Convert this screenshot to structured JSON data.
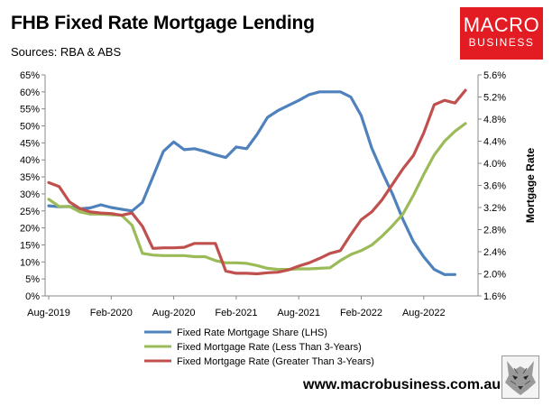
{
  "header": {
    "title": "FHB Fixed Rate Mortgage Lending",
    "subtitle": "Sources: RBA & ABS"
  },
  "logo": {
    "line1": "MACRO",
    "line2": "BUSINESS"
  },
  "footer": {
    "url": "www.macrobusiness.com.au"
  },
  "colors": {
    "share": "#4f81bd",
    "short": "#9bbb59",
    "long": "#c0504d",
    "brand": "#e31b23"
  },
  "chart_data": {
    "type": "line",
    "title": "FHB Fixed Rate Mortgage Lending",
    "ylabel_right": "Mortgage Rate",
    "x_tick_labels": [
      "Aug-2019",
      "Feb-2020",
      "Aug-2020",
      "Feb-2021",
      "Aug-2021",
      "Feb-2022",
      "Aug-2022"
    ],
    "x_tick_positions": [
      0,
      6,
      12,
      18,
      24,
      30,
      36
    ],
    "y_left": {
      "min": 0,
      "max": 65,
      "step": 5,
      "unit": "%"
    },
    "y_right": {
      "min": 1.6,
      "max": 5.6,
      "step": 0.4,
      "unit": "%"
    },
    "grid": false,
    "legend_position": "bottom",
    "series": [
      {
        "name": "Fixed Rate Mortgage Share (LHS)",
        "axis": "left",
        "color": "#4f81bd",
        "values": [
          26.5,
          26.2,
          26.3,
          25.6,
          25.9,
          26.8,
          26.0,
          25.5,
          25.0,
          27.5,
          35.0,
          42.5,
          45.3,
          43.0,
          43.3,
          42.5,
          41.5,
          40.7,
          43.8,
          43.3,
          47.5,
          52.5,
          54.5,
          56.0,
          57.5,
          59.2,
          60.0,
          60.0,
          60.0,
          58.5,
          53.0,
          43.5,
          36.5,
          30.0,
          22.5,
          16.0,
          11.5,
          7.8,
          6.3,
          6.3
        ]
      },
      {
        "name": "Fixed Mortgage Rate (Less Than 3-Years)",
        "axis": "right",
        "color": "#9bbb59",
        "values": [
          3.35,
          3.22,
          3.22,
          3.12,
          3.08,
          3.08,
          3.07,
          3.06,
          2.88,
          2.37,
          2.34,
          2.33,
          2.33,
          2.33,
          2.31,
          2.31,
          2.24,
          2.2,
          2.2,
          2.19,
          2.15,
          2.1,
          2.08,
          2.08,
          2.09,
          2.09,
          2.1,
          2.11,
          2.24,
          2.35,
          2.42,
          2.52,
          2.68,
          2.87,
          3.08,
          3.42,
          3.8,
          4.15,
          4.4,
          4.58,
          4.72
        ]
      },
      {
        "name": "Fixed Mortgage Rate (Greater Than 3-Years)",
        "axis": "right",
        "color": "#c0504d",
        "values": [
          3.65,
          3.58,
          3.3,
          3.18,
          3.12,
          3.1,
          3.09,
          3.06,
          3.1,
          2.86,
          2.46,
          2.47,
          2.47,
          2.48,
          2.55,
          2.55,
          2.55,
          2.05,
          2.01,
          2.01,
          2.0,
          2.02,
          2.03,
          2.07,
          2.14,
          2.2,
          2.28,
          2.37,
          2.42,
          2.71,
          2.98,
          3.12,
          3.34,
          3.62,
          3.9,
          4.14,
          4.55,
          5.06,
          5.14,
          5.09,
          5.32
        ]
      }
    ]
  }
}
